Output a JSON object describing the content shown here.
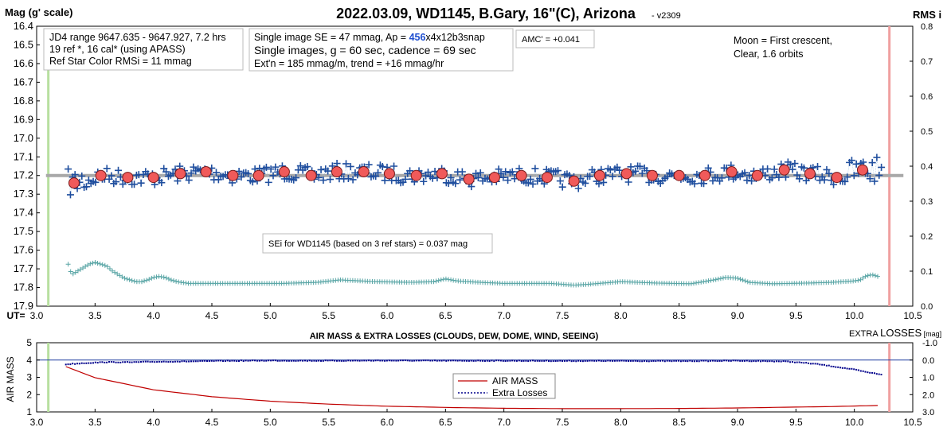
{
  "title": "2022.03.09, WD1145, B.Gary, 16\"(C), Arizona",
  "version": "- v2309",
  "top_chart": {
    "ylabel_left": "Mag (g' scale)",
    "ylabel_right": "RMS i",
    "xlabel": "UT=",
    "y_ticks_left": [
      "16.4",
      "16.5",
      "16.6",
      "16.7",
      "16.8",
      "16.9",
      "17.0",
      "17.1",
      "17.2",
      "17.3",
      "17.4",
      "17.5",
      "17.6",
      "17.7",
      "17.8",
      "17.9"
    ],
    "y_ticks_right": [
      "0.8",
      "0.7",
      "0.6",
      "0.5",
      "0.4",
      "0.3",
      "0.2",
      "0.1",
      "0.0"
    ],
    "x_ticks": [
      "3.0",
      "3.5",
      "4.0",
      "4.5",
      "5.0",
      "5.5",
      "6.0",
      "6.5",
      "7.0",
      "7.5",
      "8.0",
      "8.5",
      "9.0",
      "9.5",
      "10.0",
      "10.5"
    ],
    "info_box_1": [
      "JD4 range 9647.635 - 9647.927, 7.2 hrs",
      "19 ref *, 16 cal* (using APASS)",
      "Ref Star Color RMSi = 11 mmag"
    ],
    "info_box_2": {
      "line1_prefix": "Single image SE = 47 mmag, Ap = ",
      "line1_ap": "456",
      "line1_suffix": "x4x12b3snap",
      "line2": "Single images, g = 60 sec, cadence = 69 sec",
      "line3": "Ext'n = 185 mmag/m, trend = +16 mmag/hr"
    },
    "amc_box": "AMC' = +0.041",
    "moon_text": [
      "Moon = First crescent,",
      "Clear,  1.6 orbits"
    ],
    "sei_box": "SEi for WD1145 (based on 3 ref stars) = 0.037 mag"
  },
  "bottom_chart": {
    "title": "AIR MASS & EXTRA LOSSES (CLOUDS, DEW, DOME, WIND, SEEING)",
    "ylabel_left": "AIR MASS",
    "ylabel_right_prefix": "EXTRA ",
    "ylabel_right_main": "LOSSES",
    "ylabel_right_suffix": " [mag]",
    "y_ticks_left": [
      "5",
      "4",
      "3",
      "2",
      "1"
    ],
    "y_ticks_right": [
      "-1.0",
      "0.0",
      "1.0",
      "2.0",
      "3.0"
    ],
    "x_ticks": [
      "3.0",
      "3.5",
      "4.0",
      "4.5",
      "5.0",
      "5.5",
      "6.0",
      "6.5",
      "7.0",
      "7.5",
      "8.0",
      "8.5",
      "9.0",
      "9.5",
      "10.0",
      "10.5"
    ],
    "legend": [
      "AIR MASS",
      "Extra Losses"
    ]
  },
  "colors": {
    "blue_cross": "#1f4e9e",
    "binned_fill": "#f05a5a",
    "rms_cross": "#5aa6a6",
    "model_line": "#a8a8a8",
    "airmass_line": "#c00000",
    "losses_line": "#00008b",
    "start_line": "#b8e0a0",
    "end_line": "#f0a0a0",
    "ap_value": "#1f4fd0"
  },
  "chart_data": [
    {
      "type": "scatter",
      "title": "2022.03.09, WD1145, B.Gary, 16\"(C), Arizona",
      "xlabel": "UT=",
      "ylabel": "Mag (g' scale)",
      "y2label": "RMS i",
      "xlim": [
        3.0,
        10.5
      ],
      "ylim": [
        17.9,
        16.4
      ],
      "y2lim": [
        0.0,
        0.8
      ],
      "grid": false,
      "model_level": 17.2,
      "start_marker_x": 3.1,
      "end_marker_x": 10.3,
      "binned": {
        "name": "binned",
        "x": [
          3.32,
          3.55,
          3.78,
          4.0,
          4.23,
          4.45,
          4.68,
          4.9,
          5.12,
          5.35,
          5.57,
          5.8,
          6.02,
          6.25,
          6.47,
          6.7,
          6.92,
          7.15,
          7.37,
          7.6,
          7.82,
          8.05,
          8.27,
          8.5,
          8.72,
          8.95,
          9.17,
          9.4,
          9.62,
          9.85,
          10.07
        ],
        "y": [
          17.24,
          17.2,
          17.21,
          17.21,
          17.19,
          17.18,
          17.2,
          17.2,
          17.18,
          17.2,
          17.18,
          17.18,
          17.19,
          17.2,
          17.19,
          17.22,
          17.21,
          17.2,
          17.21,
          17.23,
          17.2,
          17.19,
          17.2,
          17.2,
          17.2,
          17.18,
          17.2,
          17.17,
          17.19,
          17.21,
          17.17
        ]
      },
      "rms": {
        "name": "RMS i",
        "x": [
          3.27,
          3.3,
          3.35,
          3.4,
          3.45,
          3.5,
          3.55,
          3.6,
          3.65,
          3.7,
          3.75,
          3.8,
          3.85,
          3.9,
          3.95,
          4.0,
          4.05,
          4.1,
          4.15,
          4.2,
          4.3,
          4.5,
          4.8,
          5.1,
          5.4,
          5.6,
          5.9,
          6.2,
          6.4,
          6.5,
          6.6,
          6.8,
          7.0,
          7.2,
          7.4,
          7.6,
          7.7,
          8.0,
          8.3,
          8.6,
          8.8,
          8.9,
          9.0,
          9.1,
          9.3,
          9.6,
          9.8,
          10.0,
          10.05,
          10.1,
          10.15,
          10.2,
          10.22
        ],
        "y": [
          0.12,
          0.09,
          0.1,
          0.11,
          0.12,
          0.125,
          0.12,
          0.115,
          0.1,
          0.09,
          0.08,
          0.075,
          0.07,
          0.07,
          0.075,
          0.082,
          0.085,
          0.082,
          0.075,
          0.07,
          0.065,
          0.065,
          0.065,
          0.065,
          0.068,
          0.075,
          0.07,
          0.068,
          0.07,
          0.078,
          0.072,
          0.068,
          0.065,
          0.065,
          0.065,
          0.06,
          0.062,
          0.07,
          0.066,
          0.064,
          0.075,
          0.082,
          0.08,
          0.068,
          0.064,
          0.066,
          0.068,
          0.072,
          0.075,
          0.086,
          0.09,
          0.085,
          0.075
        ]
      }
    },
    {
      "type": "line",
      "title": "AIR MASS & EXTRA LOSSES (CLOUDS, DEW, DOME, WIND, SEEING)",
      "xlabel": "",
      "ylabel": "AIR MASS",
      "y2label": "EXTRA LOSSES [mag]",
      "xlim": [
        3.0,
        10.5
      ],
      "ylim": [
        1,
        5
      ],
      "y2lim": [
        3.0,
        -1.0
      ],
      "legend": "center",
      "series": [
        {
          "name": "AIR MASS",
          "x": [
            3.25,
            3.5,
            4.0,
            4.5,
            5.0,
            5.5,
            6.0,
            6.5,
            7.0,
            7.5,
            8.0,
            8.5,
            9.0,
            9.5,
            9.8,
            10.0,
            10.25
          ],
          "y": [
            3.62,
            2.98,
            2.28,
            1.88,
            1.62,
            1.45,
            1.33,
            1.26,
            1.21,
            1.19,
            1.19,
            1.2,
            1.23,
            1.28,
            1.31,
            1.34,
            1.38
          ]
        },
        {
          "name": "Extra Losses",
          "x": [
            3.25,
            3.4,
            3.6,
            3.8,
            4.0,
            4.3,
            4.6,
            5.0,
            5.4,
            6.0,
            6.5,
            7.0,
            7.5,
            8.0,
            8.5,
            9.0,
            9.4,
            9.55,
            9.7,
            9.85,
            10.0,
            10.1,
            10.2,
            10.25
          ],
          "y": [
            0.25,
            0.18,
            0.12,
            0.13,
            0.1,
            0.08,
            0.05,
            0.03,
            0.04,
            0.03,
            0.04,
            0.04,
            0.05,
            0.05,
            0.06,
            0.04,
            0.08,
            0.15,
            0.25,
            0.4,
            0.55,
            0.7,
            0.8,
            0.85
          ]
        }
      ]
    }
  ]
}
